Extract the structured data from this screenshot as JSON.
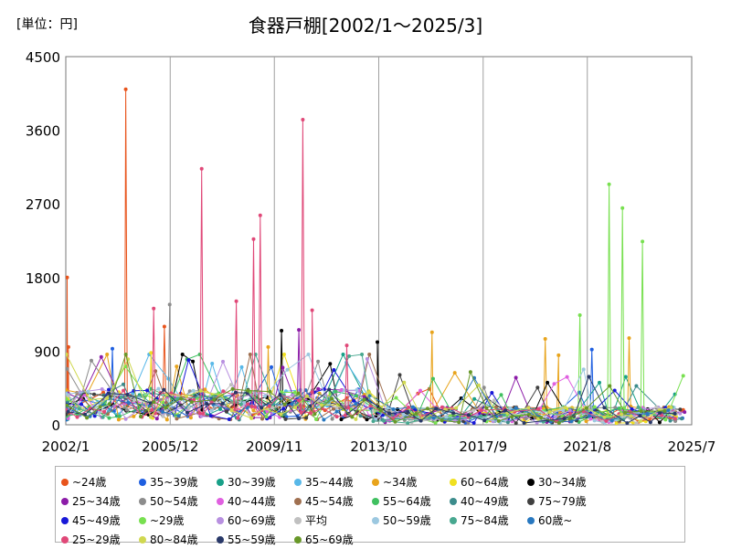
{
  "chart_data": {
    "type": "line",
    "title": "食器戸棚[2002/1～2025/3]",
    "unit_label": "[単位：円]",
    "xlabel": "",
    "ylabel": "",
    "ylim": [
      0,
      4500
    ],
    "y_ticks": [
      "0",
      "900",
      "1800",
      "2700",
      "3600",
      "4500"
    ],
    "x_range": [
      2002.0,
      2025.5
    ],
    "x_ticks": [
      {
        "label": "2002/1",
        "x": 2002.0
      },
      {
        "label": "2005/12",
        "x": 2005.92
      },
      {
        "label": "2009/11",
        "x": 2009.83
      },
      {
        "label": "2013/10",
        "x": 2013.75
      },
      {
        "label": "2017/9",
        "x": 2017.67
      },
      {
        "label": "2021/8",
        "x": 2021.58
      },
      {
        "label": "2025/7",
        "x": 2025.5
      }
    ],
    "grid": "vertical",
    "legend_position": "bottom",
    "series": [
      {
        "name": "~24歳",
        "color": "#e8541c",
        "peaks": [
          [
            2002.05,
            1800
          ],
          [
            2002.1,
            950
          ],
          [
            2004.25,
            4100
          ],
          [
            2005.7,
            1200
          ]
        ]
      },
      {
        "name": "35~39歳",
        "color": "#1f5fe0",
        "peaks": [
          [
            2003.75,
            930
          ],
          [
            2021.75,
            920
          ]
        ]
      },
      {
        "name": "30~39歳",
        "color": "#18a088",
        "peaks": []
      },
      {
        "name": "35~44歳",
        "color": "#58b8e8",
        "peaks": []
      },
      {
        "name": "~34歳",
        "color": "#e8a41c",
        "peaks": [
          [
            2009.6,
            950
          ],
          [
            2015.75,
            1130
          ],
          [
            2020.0,
            1050
          ],
          [
            2020.5,
            850
          ],
          [
            2023.15,
            1060
          ]
        ]
      },
      {
        "name": "60~64歳",
        "color": "#f0e020",
        "peaks": [
          [
            2005.2,
            880
          ]
        ]
      },
      {
        "name": "30~34歳",
        "color": "#000000",
        "peaks": [
          [
            2010.1,
            1150
          ],
          [
            2013.7,
            1010
          ]
        ]
      },
      {
        "name": "25~34歳",
        "color": "#8c1ca8",
        "peaks": [
          [
            2010.75,
            1160
          ]
        ]
      },
      {
        "name": "50~54歳",
        "color": "#8c8c8c",
        "peaks": [
          [
            2005.9,
            1470
          ]
        ]
      },
      {
        "name": "40~44歳",
        "color": "#e060e0",
        "peaks": []
      },
      {
        "name": "45~54歳",
        "color": "#a07050",
        "peaks": []
      },
      {
        "name": "55~64歳",
        "color": "#40c060",
        "peaks": []
      },
      {
        "name": "40~49歳",
        "color": "#3c8c8c",
        "peaks": []
      },
      {
        "name": "75~79歳",
        "color": "#404040",
        "peaks": []
      },
      {
        "name": "45~49歳",
        "color": "#1818d8",
        "peaks": []
      },
      {
        "name": "~29歳",
        "color": "#78e050",
        "peaks": [
          [
            2021.3,
            1340
          ],
          [
            2022.4,
            2940
          ],
          [
            2022.9,
            2650
          ],
          [
            2023.65,
            2240
          ]
        ]
      },
      {
        "name": "60~69歳",
        "color": "#b890e0",
        "peaks": []
      },
      {
        "name": "平均",
        "color": "#c0c0c0",
        "peaks": []
      },
      {
        "name": "50~59歳",
        "color": "#9cc8e0",
        "peaks": []
      },
      {
        "name": "75~84歳",
        "color": "#48a890",
        "peaks": []
      },
      {
        "name": "60歳~",
        "color": "#2878c0",
        "peaks": []
      },
      {
        "name": "25~29歳",
        "color": "#e04878",
        "peaks": [
          [
            2005.3,
            1420
          ],
          [
            2007.1,
            3130
          ],
          [
            2008.4,
            1510
          ],
          [
            2009.05,
            2270
          ],
          [
            2009.3,
            2560
          ],
          [
            2010.9,
            3730
          ],
          [
            2011.25,
            1400
          ],
          [
            2012.55,
            970
          ]
        ]
      },
      {
        "name": "80~84歳",
        "color": "#d0d850",
        "peaks": []
      },
      {
        "name": "55~59歳",
        "color": "#283868",
        "peaks": []
      },
      {
        "name": "65~69歳",
        "color": "#689828",
        "peaks": []
      }
    ]
  }
}
